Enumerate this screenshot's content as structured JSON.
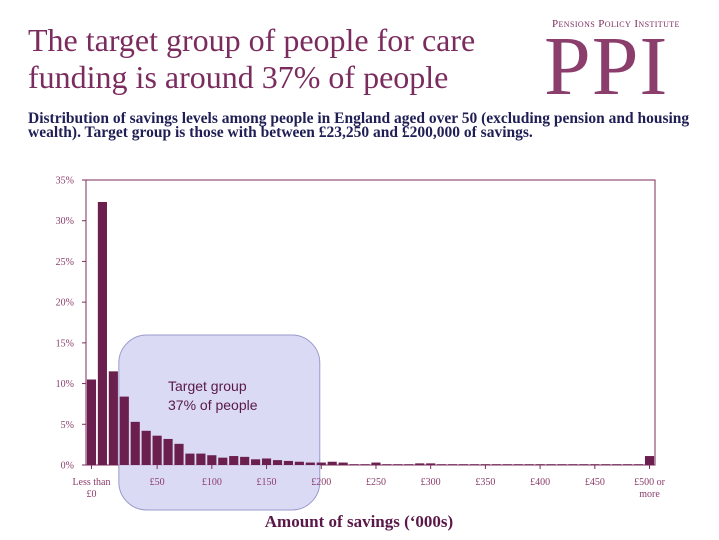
{
  "slide": {
    "title": "The target group of people for care funding is around 37% of people",
    "subtitle": "Distribution of savings levels among people in England aged over 50 (excluding pension and housing wealth). Target group is those with between £23,250 and £200,000 of savings.",
    "logo_small": "Pensions Policy Institute",
    "logo_big": "PPI"
  },
  "colors": {
    "bar": "#6b1f4e",
    "axis": "#7b2c5e",
    "highlight_fill": "#d3d3f2",
    "highlight_stroke": "#9a9acc"
  },
  "chart_data": {
    "type": "bar",
    "xlabel": "Amount of savings (‘000s)",
    "ylabel": "",
    "ylim": [
      0,
      35
    ],
    "y_ticks": [
      "0%",
      "5%",
      "10%",
      "15%",
      "20%",
      "25%",
      "30%",
      "35%"
    ],
    "x_tick_labels": [
      {
        "index": 0,
        "lines": [
          "Less than",
          "£0"
        ]
      },
      {
        "index": 6,
        "lines": [
          "£50"
        ]
      },
      {
        "index": 11,
        "lines": [
          "£100"
        ]
      },
      {
        "index": 16,
        "lines": [
          "£150"
        ]
      },
      {
        "index": 21,
        "lines": [
          "£200"
        ]
      },
      {
        "index": 26,
        "lines": [
          "£250"
        ]
      },
      {
        "index": 31,
        "lines": [
          "£300"
        ]
      },
      {
        "index": 36,
        "lines": [
          "£350"
        ]
      },
      {
        "index": 41,
        "lines": [
          "£400"
        ]
      },
      {
        "index": 46,
        "lines": [
          "£450"
        ]
      },
      {
        "index": 51,
        "lines": [
          "£500 or",
          "more"
        ]
      }
    ],
    "values": [
      10.5,
      32.3,
      11.5,
      8.4,
      5.3,
      4.2,
      3.6,
      3.2,
      2.6,
      1.4,
      1.4,
      1.2,
      0.9,
      1.1,
      1.0,
      0.7,
      0.8,
      0.6,
      0.5,
      0.4,
      0.3,
      0.3,
      0.4,
      0.3,
      0.1,
      0.1,
      0.3,
      0.1,
      0.1,
      0.1,
      0.2,
      0.2,
      0.1,
      0.1,
      0.1,
      0.1,
      0.1,
      0.1,
      0.1,
      0.1,
      0.1,
      0.1,
      0.1,
      0.1,
      0.1,
      0.1,
      0.1,
      0.1,
      0.1,
      0.1,
      0.1,
      1.1
    ],
    "annotation": {
      "label_line1": "Target group",
      "label_line2": "37% of people",
      "from_index": 3,
      "to_index": 21
    }
  }
}
